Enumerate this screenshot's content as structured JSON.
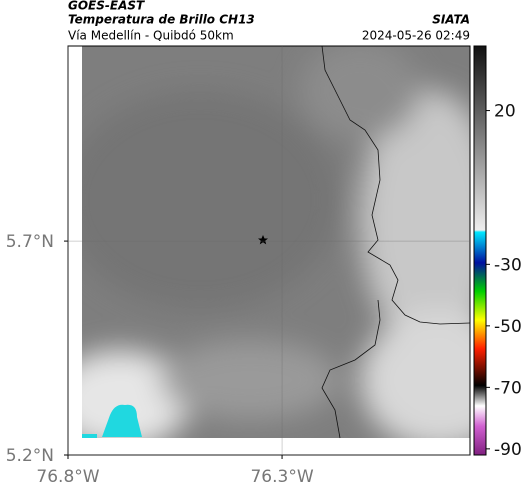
{
  "header": {
    "product": "GOES-EAST",
    "title": "Temperatura de Brillo CH13",
    "subtitle": "Vía Medellín - Quibdó 50km",
    "source": "SIATA",
    "datetime": "2024-05-26 02:49"
  },
  "map": {
    "latlim": [
      5.2,
      6.156
    ],
    "lonlim": [
      -76.8,
      -75.861
    ],
    "latticks": [
      {
        "value": 5.7,
        "label": "5.7°N"
      },
      {
        "value": 5.2,
        "label": "5.2°N"
      }
    ],
    "lonticks": [
      {
        "value": -76.8,
        "label": "76.8°W"
      },
      {
        "value": -76.3,
        "label": "76.3°W"
      }
    ],
    "grid": true
  },
  "colorbar": {
    "lim": [
      -92,
      41
    ],
    "ticks": [
      20,
      -30,
      -50,
      -70,
      -90
    ]
  }
}
